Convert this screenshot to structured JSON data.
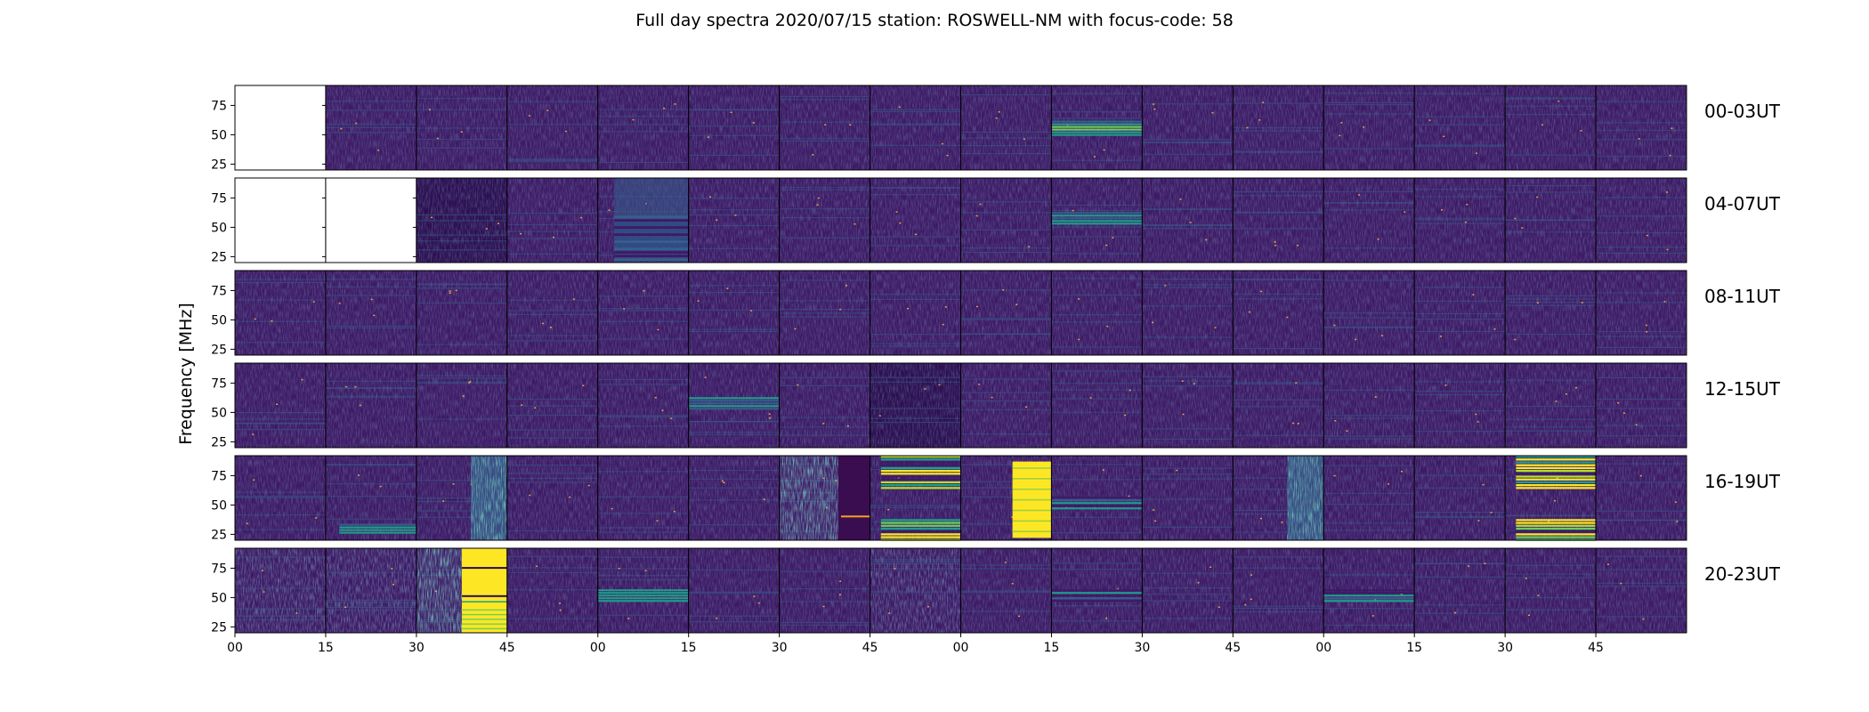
{
  "chart_data": {
    "type": "heatmap",
    "title": "Full day spectra 2020/07/15 station: ROSWELL-NM with focus-code: 58",
    "ylabel": "Frequency [MHz]",
    "yticks": [
      25,
      50,
      75
    ],
    "ylim": [
      20,
      92
    ],
    "xticks": [
      "00",
      "15",
      "30",
      "45",
      "00",
      "15",
      "30",
      "45",
      "00",
      "15",
      "30",
      "45",
      "00",
      "15",
      "30",
      "45"
    ],
    "rows": [
      {
        "label": "00-03UT",
        "panels": [
          "nodata",
          "normal",
          "normal",
          "normal",
          "normal",
          "normal",
          "normal",
          "normal",
          "normal",
          "band-teal",
          "normal",
          "normal",
          "normal",
          "normal",
          "normal",
          "normal"
        ]
      },
      {
        "label": "04-07UT",
        "panels": [
          "nodata",
          "nodata",
          "dark",
          "normal",
          "band-wide",
          "normal",
          "normal",
          "normal",
          "normal",
          "band-upper",
          "normal",
          "normal",
          "normal",
          "normal",
          "normal",
          "normal"
        ]
      },
      {
        "label": "08-11UT",
        "panels": [
          "normal",
          "normal",
          "normal",
          "normal",
          "normal",
          "normal",
          "normal",
          "normal",
          "normal",
          "normal",
          "normal",
          "normal",
          "normal",
          "normal",
          "normal",
          "normal"
        ]
      },
      {
        "label": "12-15UT",
        "panels": [
          "normal",
          "normal",
          "normal",
          "normal",
          "normal",
          "band-upper",
          "normal",
          "dark",
          "normal",
          "normal",
          "normal",
          "normal",
          "normal",
          "normal",
          "normal",
          "normal"
        ]
      },
      {
        "label": "16-19UT",
        "panels": [
          "normal",
          "band-low",
          "partial-teal",
          "normal",
          "normal",
          "normal",
          "storm-partial",
          "bright-stripes",
          "yellow-block",
          "band-mid",
          "normal",
          "partial-teal",
          "normal",
          "normal",
          "bright-stripes",
          "normal"
        ]
      },
      {
        "label": "20-23UT",
        "panels": [
          "noisy",
          "noisy",
          "yellow-half",
          "normal",
          "band-mid",
          "normal",
          "normal",
          "noisy",
          "normal",
          "band-mid",
          "normal",
          "normal",
          "band-mid",
          "normal",
          "normal",
          "normal"
        ]
      }
    ],
    "colors": {
      "background": "#3e1a66",
      "mid": "#355f8d",
      "teal": "#1f9e89",
      "green": "#6ece58",
      "yellow": "#fde725"
    },
    "grid": false,
    "legend": "none"
  }
}
